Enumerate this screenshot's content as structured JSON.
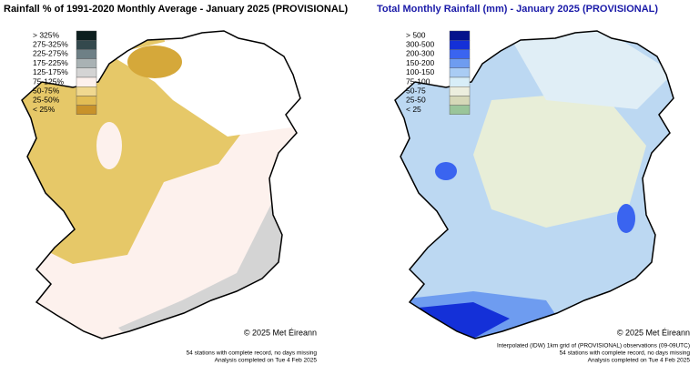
{
  "maps": [
    {
      "title": "Rainfall % of  1991-2020  Monthly Average - January 2025  (PROVISIONAL)",
      "title_color": "#000000",
      "legend": [
        {
          "label": "> 325%",
          "color": "#0d1f1f"
        },
        {
          "label": "275-325%",
          "color": "#34494d"
        },
        {
          "label": "225-275%",
          "color": "#6e8086"
        },
        {
          "label": "175-225%",
          "color": "#a9b2b4"
        },
        {
          "label": "125-175%",
          "color": "#d4d4d4"
        },
        {
          "label": "75-125%",
          "color": "#fdf1ed"
        },
        {
          "label": "50-75%",
          "color": "#f0d890"
        },
        {
          "label": "25-50%",
          "color": "#e2bd55"
        },
        {
          "label": "< 25%",
          "color": "#c8922a"
        }
      ],
      "credit": "© 2025 Met Éireann",
      "notes": [
        "54 stations with complete record, no days missing",
        "Analysis completed on Tue 4 Feb 2025"
      ]
    },
    {
      "title": "Total Monthly Rainfall (mm) - January 2025  (PROVISIONAL)",
      "title_color": "#1a1aa8",
      "legend": [
        {
          "label": "> 500",
          "color": "#05128c"
        },
        {
          "label": "300-500",
          "color": "#1430d8"
        },
        {
          "label": "200-300",
          "color": "#3a64f0"
        },
        {
          "label": "150-200",
          "color": "#6e9cf0"
        },
        {
          "label": "100-150",
          "color": "#a9ccf4"
        },
        {
          "label": "75-100",
          "color": "#d8eef8"
        },
        {
          "label": "50-75",
          "color": "#eceede"
        },
        {
          "label": "25-50",
          "color": "#d6d8b8"
        },
        {
          "label": "< 25",
          "color": "#9ac59a"
        }
      ],
      "credit": "© 2025 Met Éireann",
      "notes": [
        "Interpolated (IDW) 1km grid of  (PROVISIONAL) observations (09-09UTC)",
        "54 stations with complete record, no days missing",
        "Analysis completed on Tue 4 Feb 2025"
      ]
    }
  ]
}
